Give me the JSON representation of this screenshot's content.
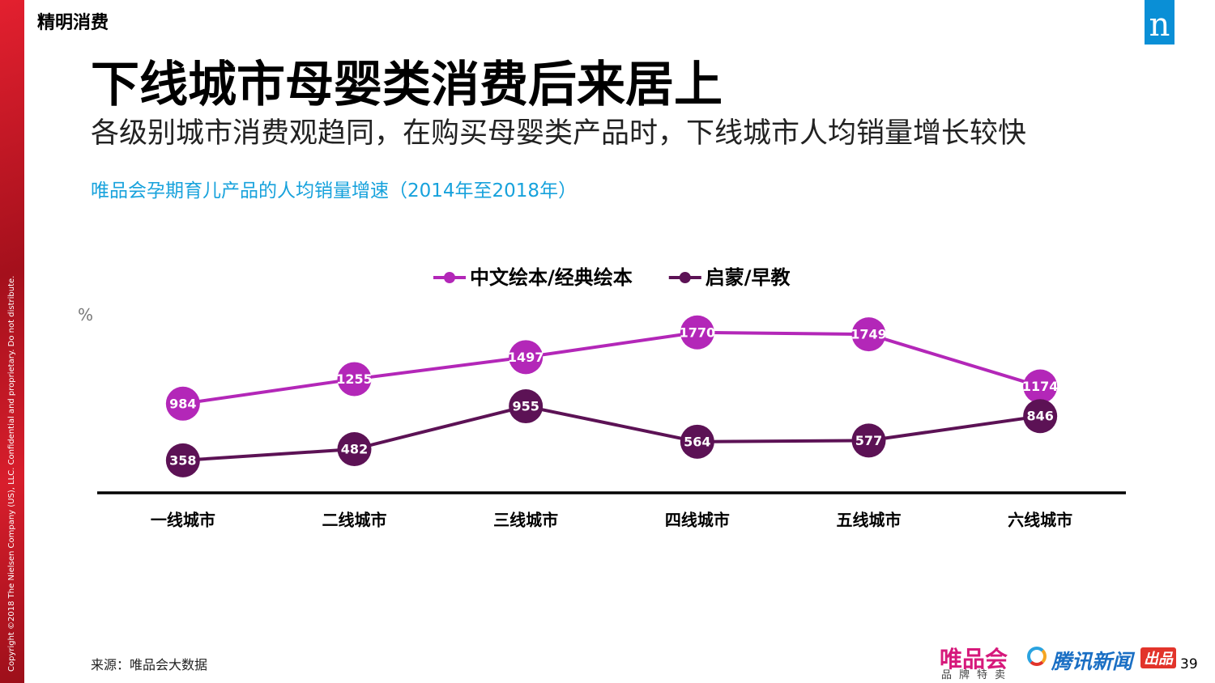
{
  "header": {
    "section": "精明消费",
    "logo": "n",
    "title": "下线城市母婴类消费后来居上",
    "subtitle": "各级别城市消费观趋同，在购买母婴类产品时，下线城市人均销量增长较快"
  },
  "copyright": "Copyright ©2018 The Nielsen Company (US), LLC. Confidential and proprietary. Do not distribute.",
  "chart_data": {
    "type": "line",
    "title": "唯品会孕期育儿产品的人均销量增速（2014年至2018年）",
    "y_unit": "%",
    "categories": [
      "一线城市",
      "二线城市",
      "三线城市",
      "四线城市",
      "五线城市",
      "六线城市"
    ],
    "series": [
      {
        "name": "中文绘本/经典绘本",
        "color": "#b327b8",
        "values": [
          984,
          1255,
          1497,
          1770,
          1749,
          1174
        ]
      },
      {
        "name": "启蒙/早教",
        "color": "#5c1255",
        "values": [
          358,
          482,
          955,
          564,
          577,
          846
        ]
      }
    ],
    "ylim": [
      0,
      2000
    ],
    "legend": "top"
  },
  "footer": {
    "source": "来源：唯品会大数据",
    "logos": [
      "唯品会",
      "品牌特卖",
      "腾讯新闻",
      "出品"
    ],
    "page": "39"
  }
}
